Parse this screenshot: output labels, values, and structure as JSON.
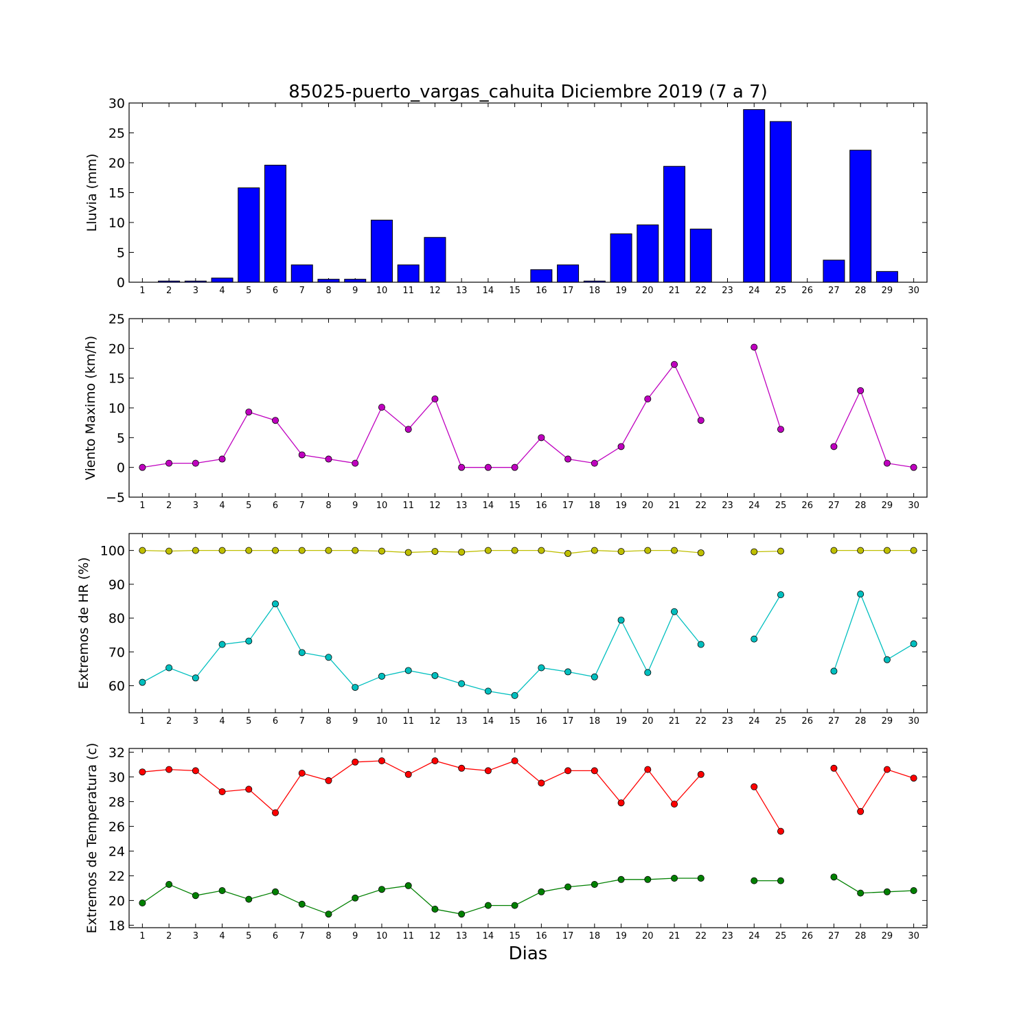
{
  "title": "85025-puerto_vargas_cahuita Diciembre 2019  (7 a 7)",
  "xlabel": "Dias",
  "chart_data": [
    {
      "type": "bar",
      "ylabel": "Lluvia (mm)",
      "ylim": [
        0,
        30
      ],
      "yticks": [
        "0",
        "5",
        "10",
        "15",
        "20",
        "25",
        "30"
      ],
      "xlim": [
        0.5,
        30.5
      ],
      "categories": [
        "1",
        "2",
        "3",
        "4",
        "5",
        "6",
        "7",
        "8",
        "9",
        "10",
        "11",
        "12",
        "13",
        "14",
        "15",
        "16",
        "17",
        "18",
        "19",
        "20",
        "21",
        "22",
        "23",
        "24",
        "25",
        "26",
        "27",
        "28",
        "29",
        "30"
      ],
      "series": [
        {
          "color": "#0000ff",
          "values": [
            0,
            0.2,
            0.2,
            0.7,
            15.8,
            19.6,
            2.9,
            0.5,
            0.5,
            10.4,
            2.9,
            7.5,
            0,
            0,
            0,
            2.1,
            2.9,
            0.2,
            8.1,
            9.6,
            19.4,
            8.9,
            0,
            28.9,
            26.9,
            0,
            3.7,
            22.1,
            1.8,
            0
          ]
        }
      ]
    },
    {
      "type": "line",
      "ylabel": "Viento Maximo (km/h)",
      "ylim": [
        -5,
        25
      ],
      "yticks": [
        "−5",
        "0",
        "5",
        "10",
        "15",
        "20",
        "25"
      ],
      "xlim": [
        0.5,
        30.5
      ],
      "categories": [
        "1",
        "2",
        "3",
        "4",
        "5",
        "6",
        "7",
        "8",
        "9",
        "10",
        "11",
        "12",
        "13",
        "14",
        "15",
        "16",
        "17",
        "18",
        "19",
        "20",
        "21",
        "22",
        "23",
        "24",
        "25",
        "26",
        "27",
        "28",
        "29",
        "30"
      ],
      "series": [
        {
          "color": "#bf00bf",
          "values": [
            0,
            0.7,
            0.7,
            1.4,
            9.3,
            7.9,
            2.1,
            1.4,
            0.7,
            10.1,
            6.4,
            11.5,
            0,
            0,
            0,
            5.0,
            1.4,
            0.7,
            3.5,
            11.5,
            17.3,
            7.9,
            null,
            20.2,
            6.4,
            null,
            3.5,
            12.9,
            0.7,
            0
          ]
        }
      ]
    },
    {
      "type": "line",
      "ylabel": "Extremos de HR (%)",
      "ylim": [
        52,
        105
      ],
      "yticks": [
        "60",
        "70",
        "80",
        "90",
        "100"
      ],
      "ytick_values": [
        60,
        70,
        80,
        90,
        100
      ],
      "xlim": [
        0.5,
        30.5
      ],
      "categories": [
        "1",
        "2",
        "3",
        "4",
        "5",
        "6",
        "7",
        "8",
        "9",
        "10",
        "11",
        "12",
        "13",
        "14",
        "15",
        "16",
        "17",
        "18",
        "19",
        "20",
        "21",
        "22",
        "23",
        "24",
        "25",
        "26",
        "27",
        "28",
        "29",
        "30"
      ],
      "series": [
        {
          "color": "#bfbf00",
          "values": [
            100,
            99.8,
            100,
            100,
            100,
            100,
            100,
            100,
            100,
            99.8,
            99.4,
            99.7,
            99.5,
            100,
            100,
            100,
            99.1,
            100,
            99.7,
            100,
            100,
            99.3,
            null,
            99.6,
            99.8,
            null,
            100,
            100,
            100,
            100
          ]
        },
        {
          "color": "#00bfbf",
          "values": [
            61.0,
            65.3,
            62.3,
            72.2,
            73.2,
            84.2,
            69.8,
            68.4,
            59.5,
            62.8,
            64.5,
            63.0,
            60.6,
            58.4,
            57.1,
            65.3,
            64.1,
            62.6,
            79.4,
            63.9,
            81.9,
            72.2,
            null,
            73.8,
            86.9,
            null,
            64.3,
            87.1,
            67.7,
            72.4
          ]
        }
      ]
    },
    {
      "type": "line",
      "ylabel": "Extremos de Temperatura (c)",
      "ylim": [
        17.8,
        32.3
      ],
      "yticks": [
        "18",
        "20",
        "22",
        "24",
        "26",
        "28",
        "30",
        "32"
      ],
      "ytick_values": [
        18,
        20,
        22,
        24,
        26,
        28,
        30,
        32
      ],
      "xlim": [
        0.5,
        30.5
      ],
      "categories": [
        "1",
        "2",
        "3",
        "4",
        "5",
        "6",
        "7",
        "8",
        "9",
        "10",
        "11",
        "12",
        "13",
        "14",
        "15",
        "16",
        "17",
        "18",
        "19",
        "20",
        "21",
        "22",
        "23",
        "24",
        "25",
        "26",
        "27",
        "28",
        "29",
        "30"
      ],
      "series": [
        {
          "color": "#ff0000",
          "values": [
            30.4,
            30.6,
            30.5,
            28.8,
            29.0,
            27.1,
            30.3,
            29.7,
            31.2,
            31.3,
            30.2,
            31.3,
            30.7,
            30.5,
            31.3,
            29.5,
            30.5,
            30.5,
            27.9,
            30.6,
            27.8,
            30.2,
            null,
            29.2,
            25.6,
            null,
            30.7,
            27.2,
            30.6,
            29.9
          ]
        },
        {
          "color": "#008000",
          "values": [
            19.8,
            21.3,
            20.4,
            20.8,
            20.1,
            20.7,
            19.7,
            18.9,
            20.2,
            20.9,
            21.2,
            19.3,
            18.9,
            19.6,
            19.6,
            20.7,
            21.1,
            21.3,
            21.7,
            21.7,
            21.8,
            21.8,
            null,
            21.6,
            21.6,
            null,
            21.9,
            20.6,
            20.7,
            20.8
          ]
        }
      ]
    }
  ]
}
